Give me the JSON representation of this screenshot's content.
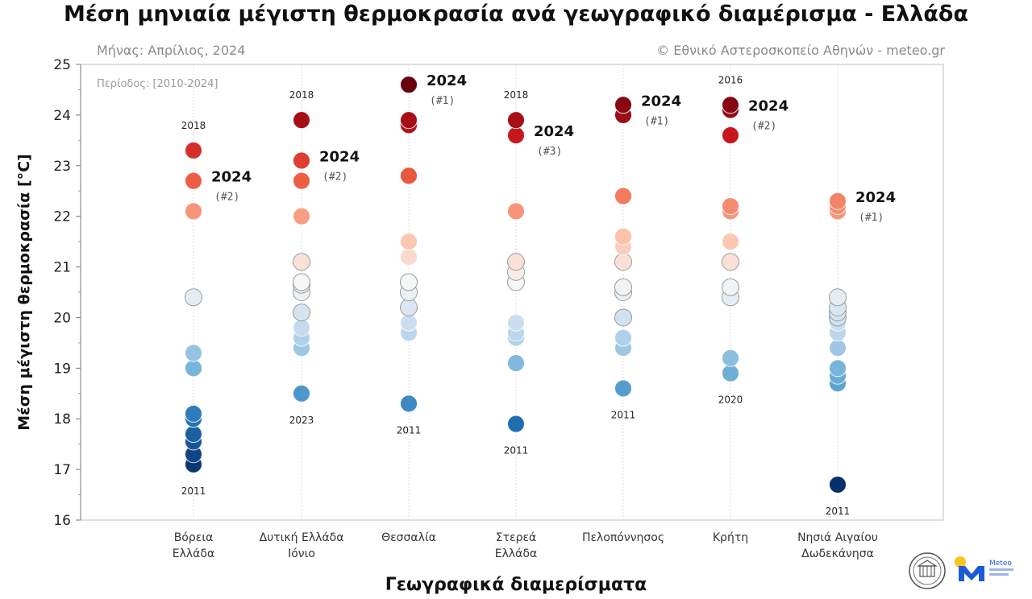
{
  "chart_data": {
    "type": "scatter",
    "title": "Μέση μηνιαία μέγιστη θερμοκρασία ανά γεωγραφικό διαμέρισμα - Ελλάδα",
    "subtitle_left": "Μήνας: Απρίλιος, 2024",
    "subtitle_right": "© Εθνικό Αστεροσκοπείο Αθηνών - meteo.gr",
    "period_label": "Περίοδος: [2010-2024]",
    "xlabel": "Γεωγραφικά διαμερίσματα",
    "ylabel": "Μέση μέγιστη θερμοκρασία [°C]",
    "ylim": [
      16,
      25
    ],
    "yticks": [
      "16",
      "17",
      "18",
      "19",
      "20",
      "21",
      "22",
      "23",
      "24",
      "25"
    ],
    "grid": "vertical",
    "color_scale": {
      "min": 17,
      "max": 24.5,
      "stops": [
        "#08306b",
        "#2171b5",
        "#6baed6",
        "#c6dbef",
        "#f7f7f7",
        "#fcbba1",
        "#ef6548",
        "#cb181d",
        "#67000d"
      ]
    },
    "categories": [
      {
        "label_lines": [
          "Βόρεια",
          "Ελλάδα"
        ],
        "values": [
          17.1,
          17.3,
          17.55,
          17.7,
          18.0,
          18.1,
          19.0,
          19.3,
          20.4,
          22.1,
          22.7,
          23.3
        ],
        "highlight_year": "2024",
        "highlight_value": 22.7,
        "highlight_rank": "(#2)",
        "max_year": "2018",
        "max_value": 23.3,
        "min_year": "2011",
        "min_value": 17.1
      },
      {
        "label_lines": [
          "Δυτική Ελλάδα",
          "Ιόνιο"
        ],
        "values": [
          18.5,
          19.4,
          19.6,
          19.8,
          20.1,
          20.5,
          20.65,
          20.7,
          21.1,
          22.0,
          22.7,
          23.1,
          23.9
        ],
        "highlight_year": "2024",
        "highlight_value": 23.1,
        "highlight_rank": "(#2)",
        "max_year": "2018",
        "max_value": 23.9,
        "min_year": "2023",
        "min_value": 18.5
      },
      {
        "label_lines": [
          "Θεσσαλία"
        ],
        "values": [
          18.3,
          19.7,
          19.9,
          20.2,
          20.5,
          20.7,
          21.2,
          21.5,
          22.8,
          23.8,
          23.9,
          24.6
        ],
        "highlight_year": "2024",
        "highlight_value": 24.6,
        "highlight_rank": "(#1)",
        "max_year": "",
        "max_value": null,
        "min_year": "2011",
        "min_value": 18.3
      },
      {
        "label_lines": [
          "Στερεά",
          "Ελλάδα"
        ],
        "values": [
          17.9,
          19.1,
          19.6,
          19.7,
          19.9,
          20.7,
          20.9,
          21.1,
          22.1,
          23.6,
          23.9
        ],
        "highlight_year": "2024",
        "highlight_value": 23.6,
        "highlight_rank": "(#3)",
        "max_year": "2018",
        "max_value": 23.9,
        "min_year": "2011",
        "min_value": 17.9
      },
      {
        "label_lines": [
          "Πελοπόννησος"
        ],
        "values": [
          18.6,
          19.4,
          19.6,
          20.0,
          20.5,
          20.6,
          21.1,
          21.4,
          21.6,
          22.4,
          24.0,
          24.2
        ],
        "highlight_year": "2024",
        "highlight_value": 24.2,
        "highlight_rank": "(#1)",
        "max_year": "",
        "max_value": null,
        "min_year": "2011",
        "min_value": 18.6
      },
      {
        "label_lines": [
          "Κρήτη"
        ],
        "values": [
          18.9,
          19.2,
          20.4,
          20.6,
          21.1,
          21.5,
          22.1,
          22.2,
          23.6,
          24.1,
          24.2
        ],
        "highlight_year": "2024",
        "highlight_value": 24.1,
        "highlight_rank": "(#2)",
        "max_year": "2016",
        "max_value": 24.2,
        "min_year": "2020",
        "min_value": 18.9
      },
      {
        "label_lines": [
          "Νησιά Αιγαίου",
          "Δωδεκάνησα"
        ],
        "values": [
          16.7,
          18.7,
          18.85,
          19.0,
          19.4,
          19.7,
          19.9,
          20.0,
          20.1,
          20.2,
          20.4,
          22.1,
          22.2,
          22.3
        ],
        "highlight_year": "2024",
        "highlight_value": 22.3,
        "highlight_rank": "(#1)",
        "max_year": "",
        "max_value": null,
        "min_year": "2011",
        "min_value": 16.7
      }
    ]
  },
  "logos": {
    "observatory_icon": "observatory-seal-icon",
    "meteo_icon": "meteo-logo-icon",
    "meteo_name": "Meteo"
  }
}
